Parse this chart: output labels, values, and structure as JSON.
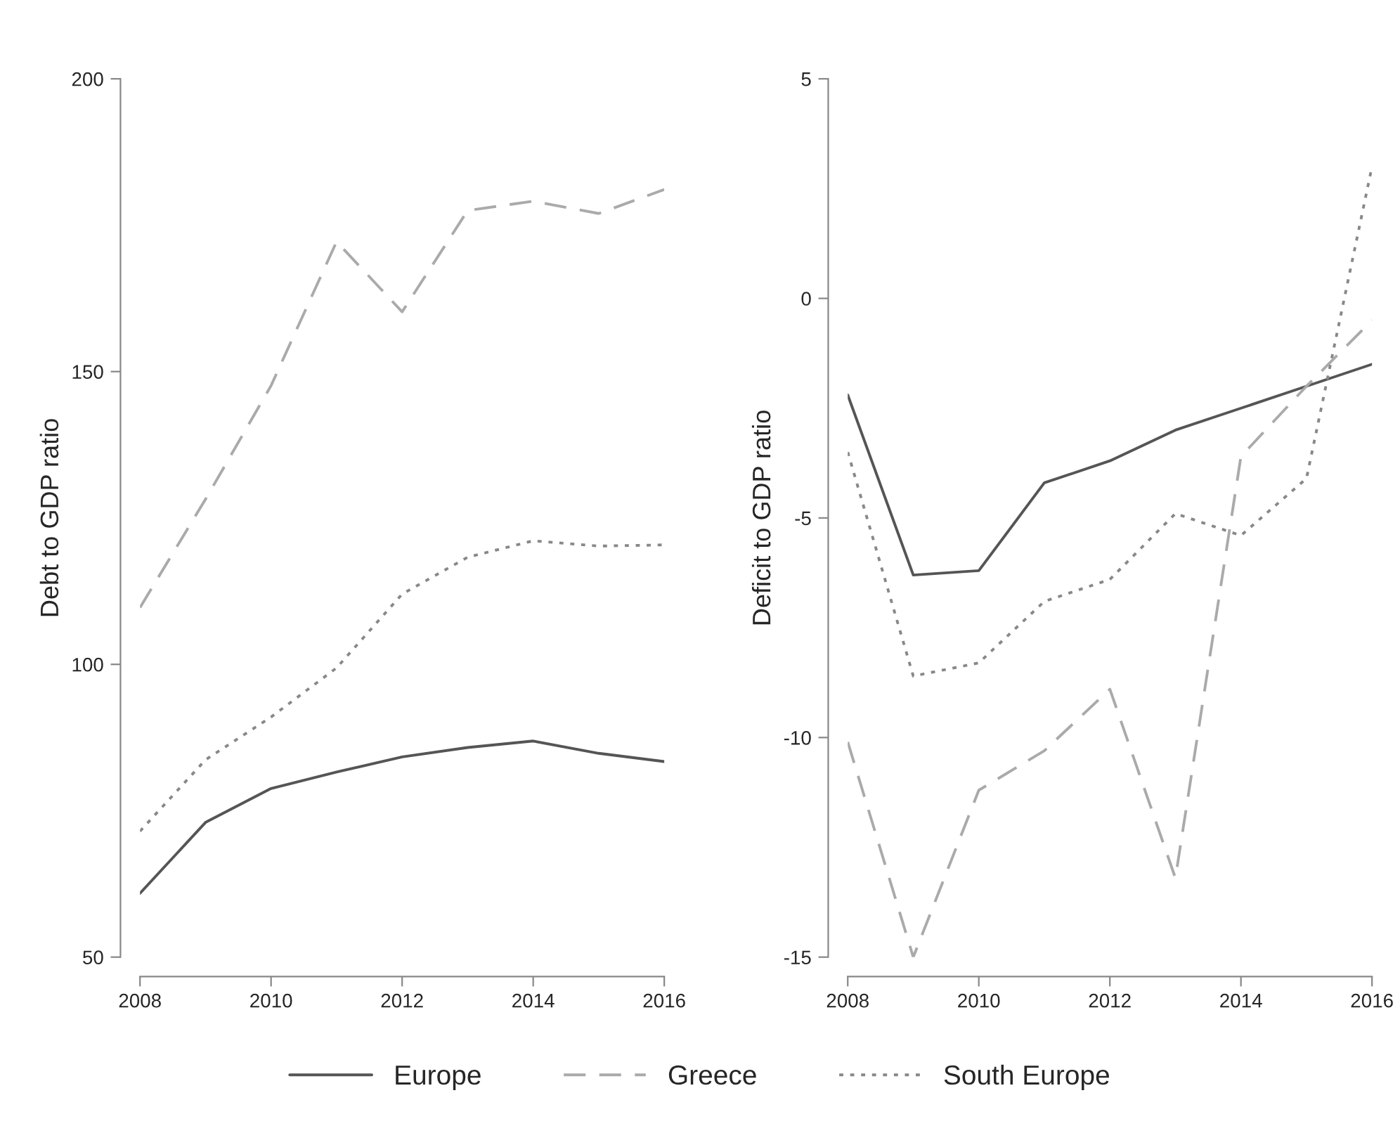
{
  "chart_data": [
    {
      "type": "line",
      "ylabel": "Debt to GDP ratio",
      "x": [
        2008,
        2009,
        2010,
        2011,
        2012,
        2013,
        2014,
        2015,
        2016
      ],
      "xlim": [
        2008,
        2016
      ],
      "xticks": [
        2008,
        2010,
        2012,
        2014,
        2016
      ],
      "ylim": [
        50,
        200
      ],
      "yticks": [
        50,
        100,
        150,
        200
      ],
      "grid": false,
      "legend": "bottom",
      "series": [
        {
          "name": "Europe",
          "color": "#555555",
          "line_style": "solid",
          "values": [
            60.9,
            73,
            78.8,
            81.6,
            84.2,
            85.8,
            86.9,
            84.8,
            83.4
          ]
        },
        {
          "name": "Greece",
          "color": "#aaaaaa",
          "line_style": "dashed",
          "values": [
            109.7,
            128.2,
            147.6,
            172.2,
            160.2,
            177.5,
            179.1,
            177,
            181.1
          ]
        },
        {
          "name": "South Europe",
          "color": "#888888",
          "line_style": "dotted",
          "values": [
            71.5,
            83.7,
            91,
            99.4,
            112,
            118.3,
            121.1,
            120.2,
            120.4
          ]
        }
      ]
    },
    {
      "type": "line",
      "ylabel": "Deficit to GDP ratio",
      "x": [
        2008,
        2009,
        2010,
        2011,
        2012,
        2013,
        2014,
        2015,
        2016
      ],
      "xlim": [
        2008,
        2016
      ],
      "xticks": [
        2008,
        2010,
        2012,
        2014,
        2016
      ],
      "ylim": [
        -15,
        5
      ],
      "yticks": [
        -15,
        -10,
        -5,
        0,
        5
      ],
      "grid": false,
      "series": [
        {
          "name": "Europe",
          "color": "#555555",
          "line_style": "solid",
          "values": [
            -2.2,
            -6.3,
            -6.2,
            -4.2,
            -3.7,
            -3,
            -2.5,
            -2,
            -1.5
          ]
        },
        {
          "name": "Greece",
          "color": "#aaaaaa",
          "line_style": "dashed",
          "values": [
            -10.1,
            -15,
            -11.2,
            -10.3,
            -8.9,
            -13.2,
            -3.6,
            -2,
            -0.5
          ]
        },
        {
          "name": "South Europe",
          "color": "#888888",
          "line_style": "dotted",
          "values": [
            -3.5,
            -8.6,
            -8.3,
            -6.9,
            -6.4,
            -4.9,
            -5.4,
            -4.1,
            3
          ]
        }
      ]
    }
  ]
}
